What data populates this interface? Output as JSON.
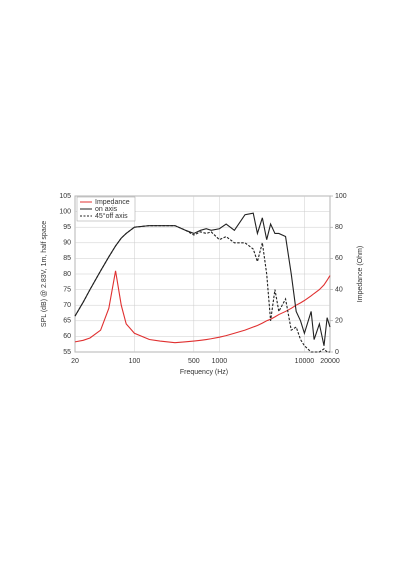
{
  "chart_data": {
    "type": "line",
    "xlabel": "Frequency (Hz)",
    "ylabel": "SPL (dB) @ 2.83V, 1m, half space",
    "y2label": "Impedance (Ohm)",
    "xscale": "log",
    "x": [
      20,
      25,
      30,
      40,
      50,
      60,
      70,
      80,
      100,
      150,
      200,
      300,
      400,
      500,
      600,
      700,
      800,
      1000,
      1200,
      1500,
      2000,
      2500,
      2800,
      3200,
      3600,
      4000,
      4500,
      5000,
      6000,
      7000,
      8000,
      9000,
      10000,
      12000,
      13000,
      15000,
      17000,
      18500,
      20000
    ],
    "series": [
      {
        "name": "Impedance",
        "color": "#e03030",
        "linestyle": "solid",
        "axis": "y2",
        "values": [
          6.5,
          7.5,
          9,
          14,
          28,
          52,
          30,
          18,
          12,
          8,
          7,
          6,
          6.5,
          7,
          7.5,
          8,
          8.5,
          9.5,
          10.5,
          12,
          14,
          16,
          17,
          18.5,
          20,
          21,
          22.5,
          24,
          26,
          28,
          30,
          31.5,
          33,
          36,
          37.5,
          40,
          43,
          46,
          49
        ]
      },
      {
        "name": "on axis",
        "color": "#222222",
        "linestyle": "solid",
        "values": [
          66.5,
          71,
          75,
          81,
          85.5,
          89,
          91.5,
          93,
          95,
          95.5,
          95.5,
          95.5,
          94,
          93,
          94,
          94.5,
          94,
          94.5,
          96,
          94,
          99,
          99.5,
          93,
          98,
          91,
          96,
          93,
          93,
          92,
          80,
          68,
          65,
          61,
          68,
          59,
          64,
          57,
          66,
          63
        ]
      },
      {
        "name": "45°off axis",
        "color": "#222222",
        "linestyle": "dashed",
        "values": [
          66.5,
          71,
          75,
          81,
          85.5,
          89,
          91.5,
          93,
          95,
          95.5,
          95.5,
          95.5,
          94,
          92.5,
          93.5,
          93,
          93.5,
          91,
          92,
          90,
          90,
          88,
          84,
          90,
          80,
          65,
          75,
          68,
          72,
          62,
          63,
          59,
          57,
          55,
          55,
          55,
          56,
          55,
          55
        ]
      }
    ],
    "xlim": [
      20,
      20000
    ],
    "xticks": [
      20,
      100,
      500,
      1000,
      10000,
      20000
    ],
    "ylim": [
      55,
      105
    ],
    "yticks": [
      55,
      60,
      65,
      70,
      75,
      80,
      85,
      90,
      95,
      100,
      105
    ],
    "y2lim": [
      0,
      100
    ],
    "y2ticks": [
      0,
      20,
      40,
      60,
      80,
      100
    ],
    "grid": true,
    "legend": "upper left"
  }
}
